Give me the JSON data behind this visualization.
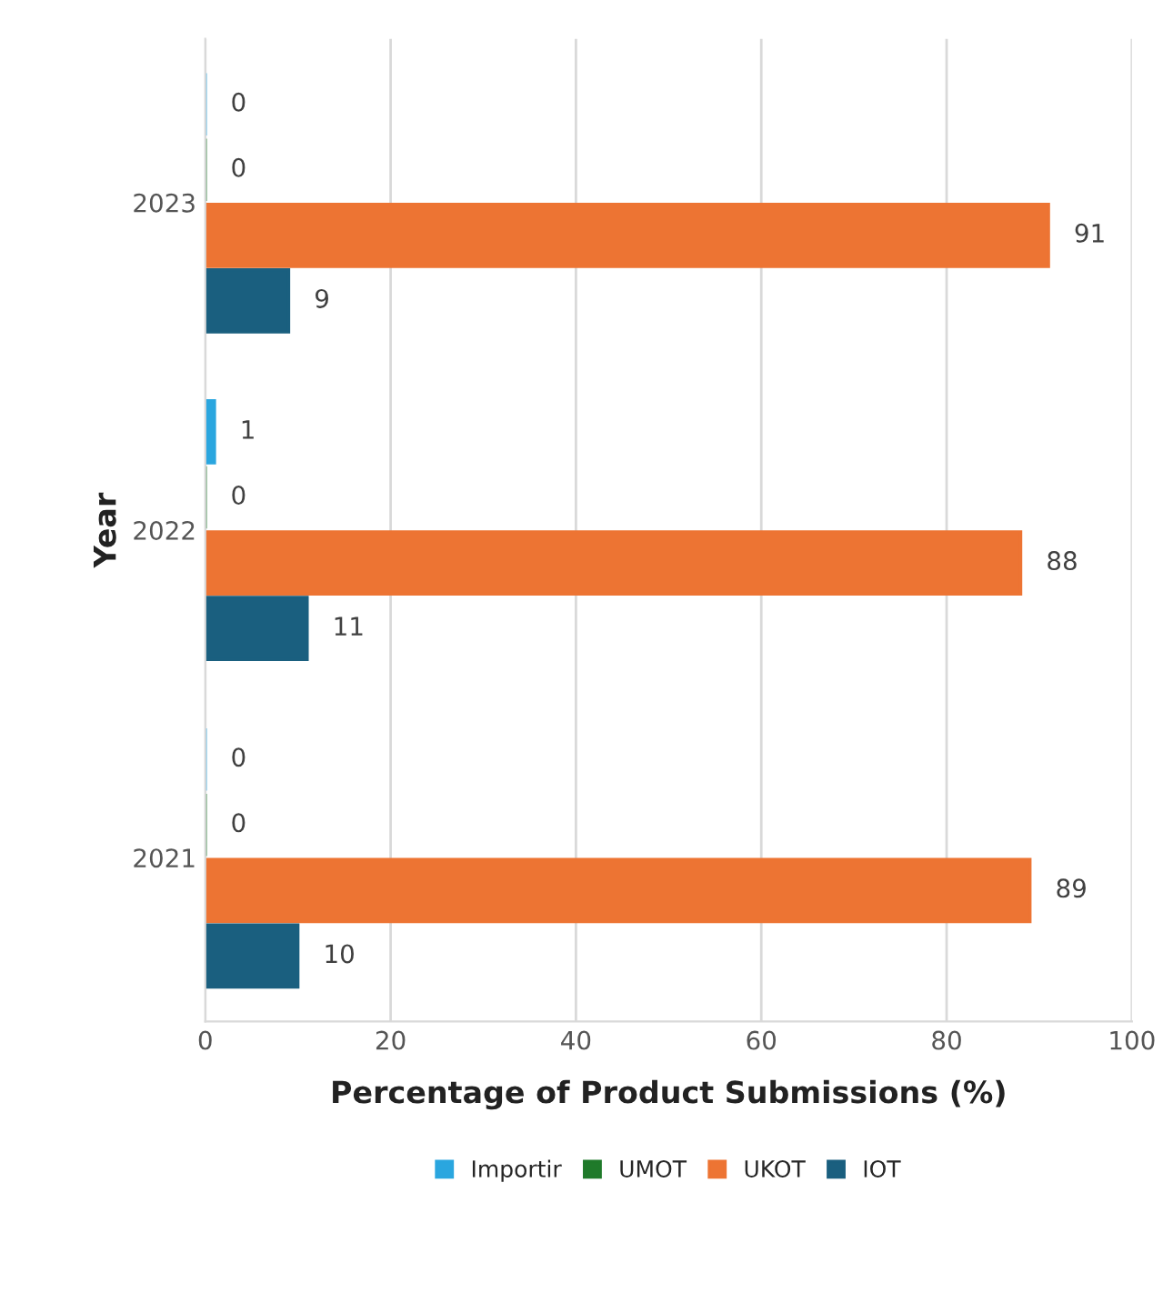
{
  "chart_data": {
    "type": "bar",
    "orientation": "horizontal",
    "xlabel": "Percentage of Product Submissions (%)",
    "ylabel": "Year",
    "categories": [
      "2023",
      "2022",
      "2021"
    ],
    "series": [
      {
        "name": "Importir",
        "color": "#2aa6df",
        "values": [
          0,
          1,
          0
        ]
      },
      {
        "name": "UMOT",
        "color": "#1f7a2a",
        "values": [
          0,
          0,
          0
        ]
      },
      {
        "name": "UKOT",
        "color": "#ed7433",
        "values": [
          91,
          88,
          89
        ]
      },
      {
        "name": "IOT",
        "color": "#1a5f7f",
        "values": [
          9,
          11,
          10
        ]
      }
    ],
    "xlim": [
      0,
      100
    ],
    "xticks": [
      0,
      20,
      40,
      60,
      80,
      100
    ],
    "grid": "x",
    "legend": "bottom",
    "data_labels": true
  }
}
